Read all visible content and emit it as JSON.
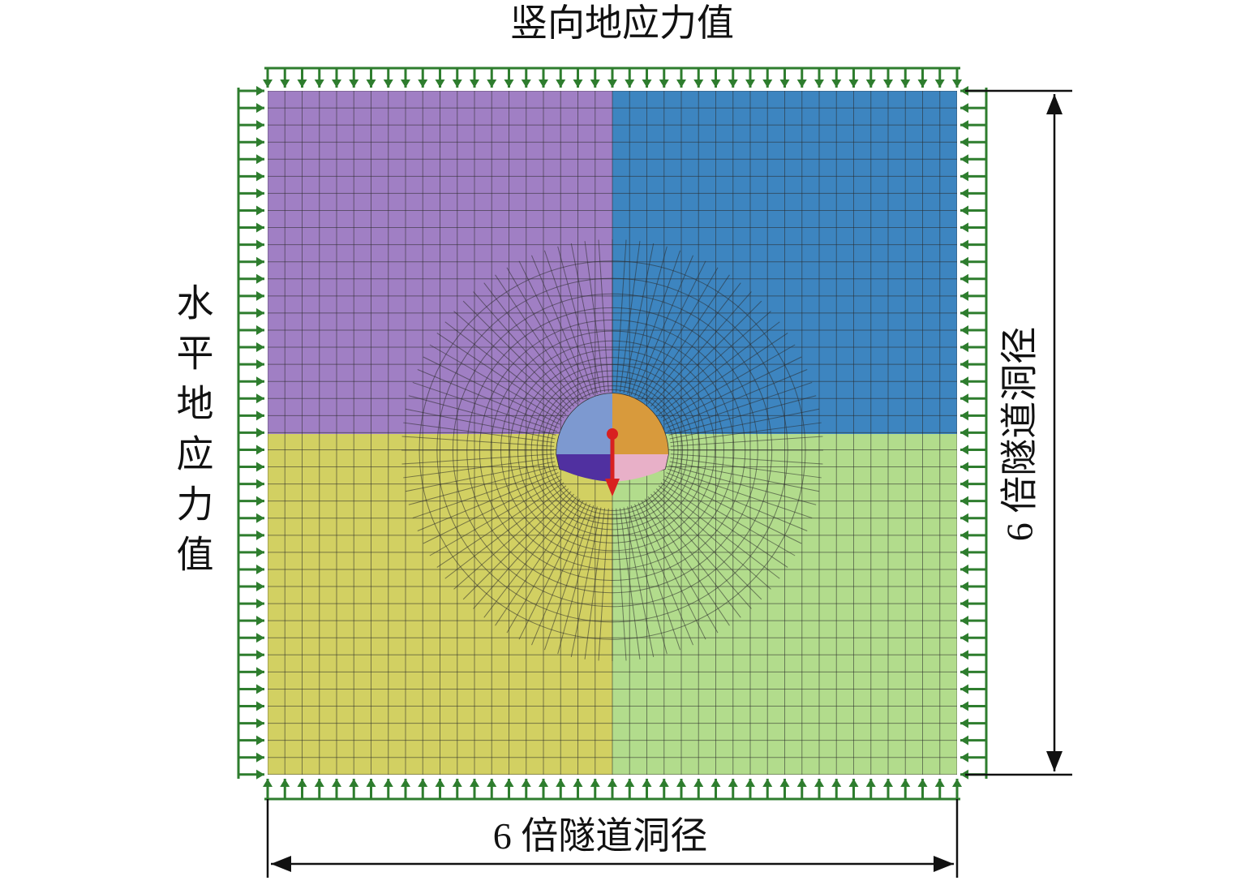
{
  "labels": {
    "top": "竖向地应力值",
    "left": "水平地应力值",
    "right": "6 倍隧道洞径",
    "bottom": "6 倍隧道洞径"
  }
}
